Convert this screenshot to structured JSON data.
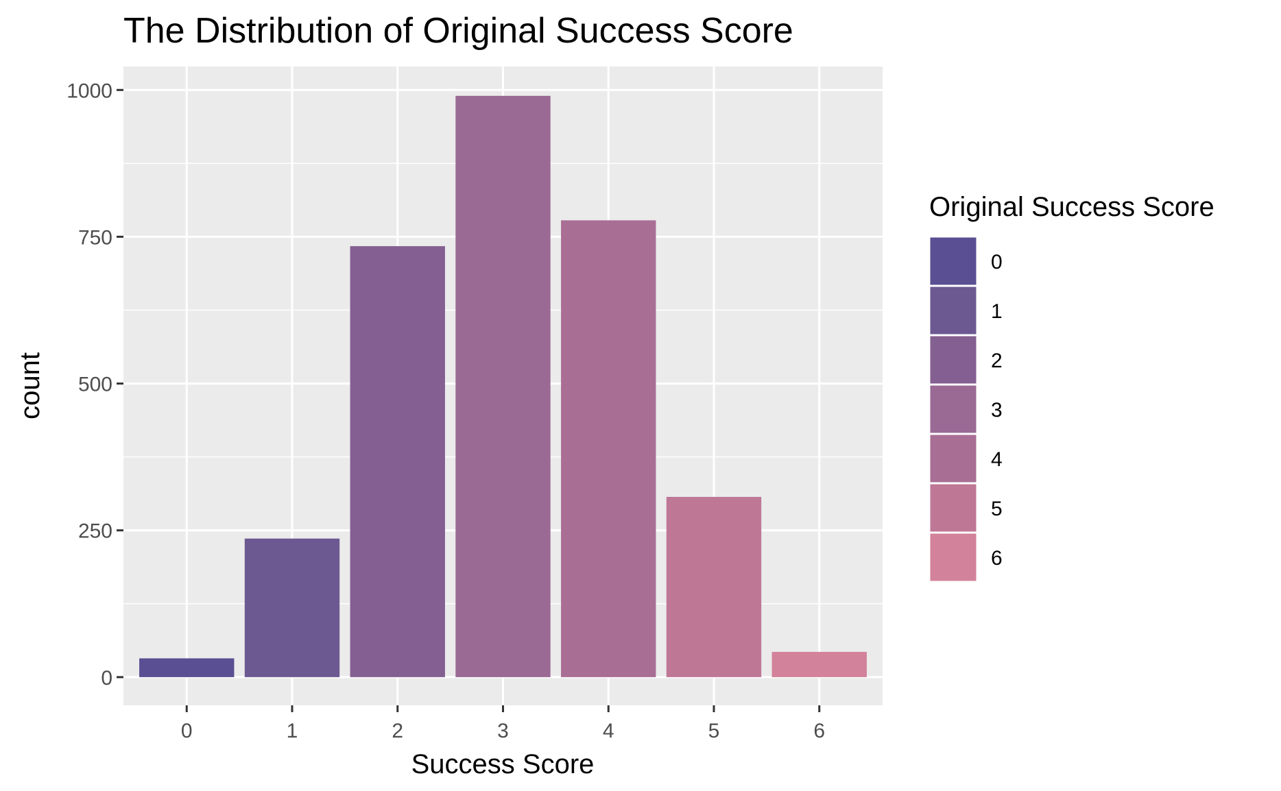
{
  "chart_data": {
    "type": "bar",
    "title": "The Distribution of Original Success Score",
    "xlabel": "Success Score",
    "ylabel": "count",
    "categories": [
      "0",
      "1",
      "2",
      "3",
      "4",
      "5",
      "6"
    ],
    "values": [
      32,
      236,
      734,
      990,
      778,
      307,
      43
    ],
    "colors": [
      "#5a4f92",
      "#6c5992",
      "#845f91",
      "#9a6994",
      "#a96e94",
      "#bf7796",
      "#d2829a"
    ],
    "ylim": [
      -48,
      1040
    ],
    "yticks": [
      0,
      250,
      500,
      750,
      1000
    ],
    "grid": true,
    "legend": {
      "title": "Original Success Score",
      "position": "right",
      "entries": [
        "0",
        "1",
        "2",
        "3",
        "4",
        "5",
        "6"
      ]
    }
  }
}
